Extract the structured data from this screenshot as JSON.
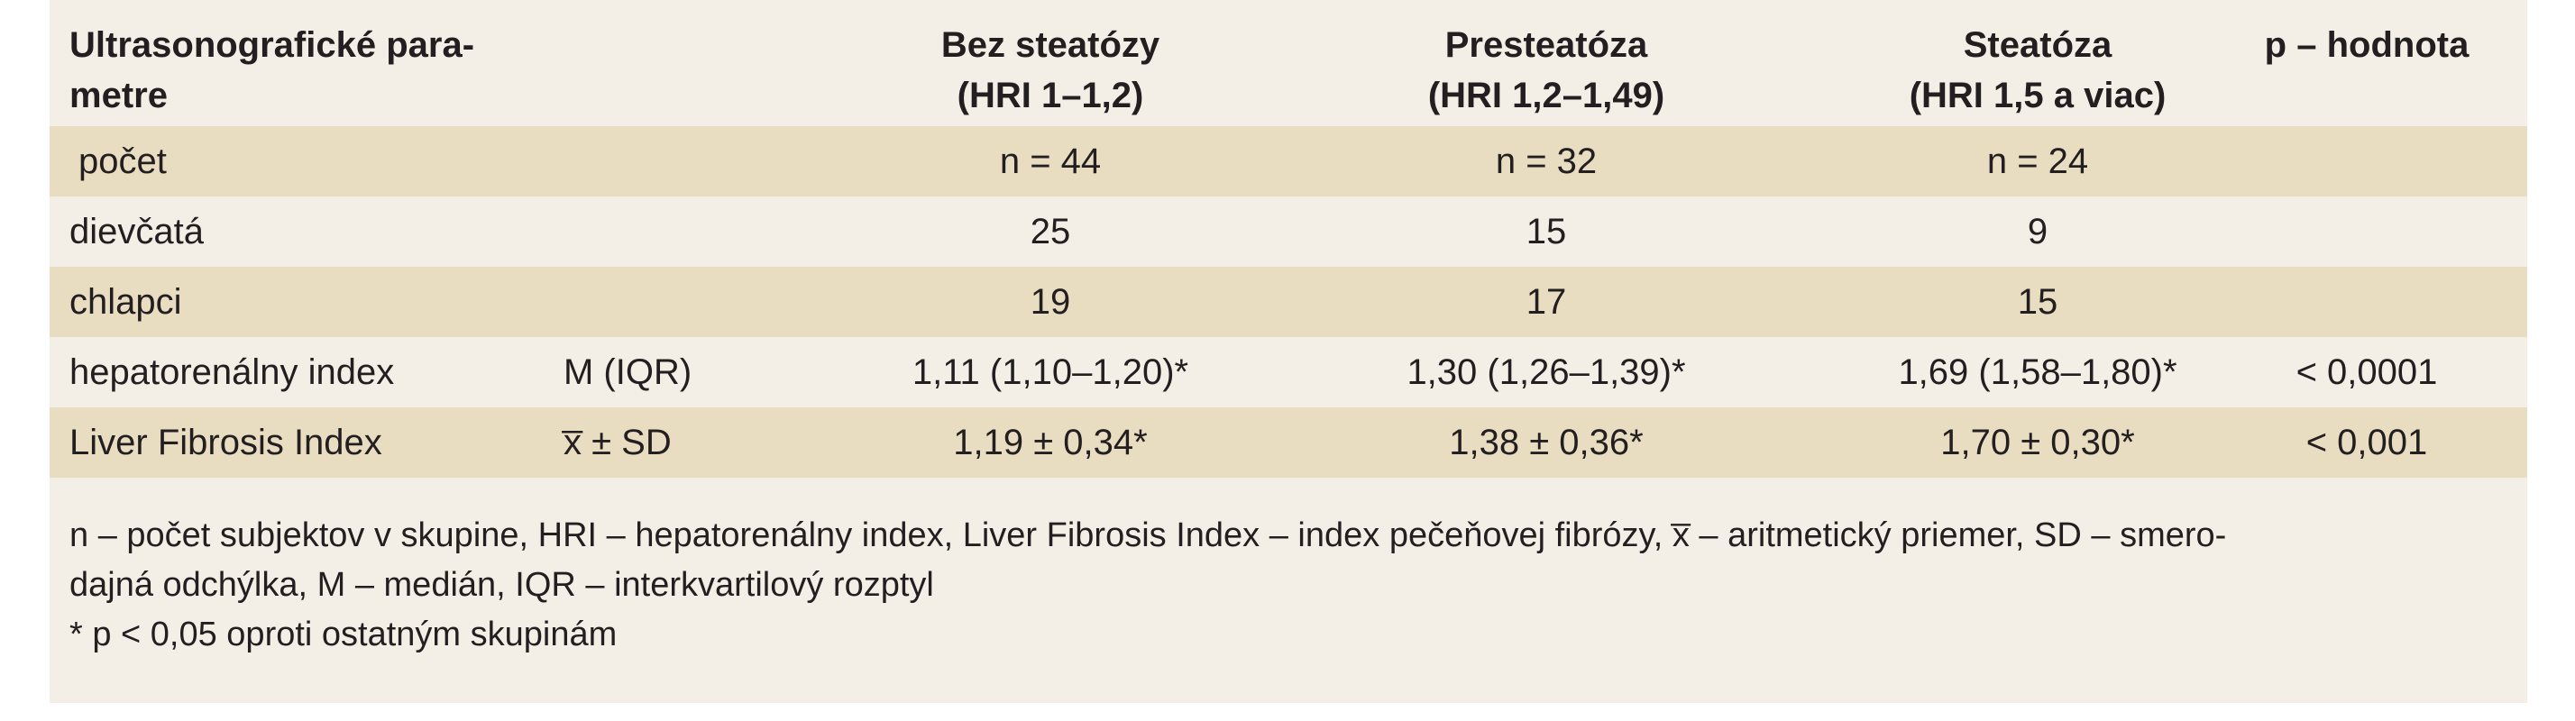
{
  "table": {
    "headers": {
      "param_line1": "Ultrasonografické para-",
      "param_line2": "metre",
      "col1_line1": "Bez steatózy",
      "col1_line2": "(HRI 1–1,2)",
      "col2_line1": "Presteatóza",
      "col2_line2": "(HRI 1,2–1,49)",
      "col3_line1": "Steatóza",
      "col3_line2": "(HRI 1,5 a viac)",
      "p_value": "p – hodnota"
    },
    "rows": [
      {
        "label": "počet",
        "stat": "",
        "v1": "n = 44",
        "v2": "n = 32",
        "v3": "n = 24",
        "p": ""
      },
      {
        "label": "dievčatá",
        "stat": "",
        "v1": "25",
        "v2": "15",
        "v3": "9",
        "p": ""
      },
      {
        "label": "chlapci",
        "stat": "",
        "v1": "19",
        "v2": "17",
        "v3": "15",
        "p": ""
      },
      {
        "label": "hepatorenálny index",
        "stat": "M (IQR)",
        "v1": "1,11 (1,10–1,20)*",
        "v2": "1,30 (1,26–1,39)*",
        "v3": "1,69 (1,58–1,80)*",
        "p": "< 0,0001"
      },
      {
        "label": "Liver Fibrosis Index",
        "stat": "x̅ ± SD",
        "v1": "1,19 ± 0,34*",
        "v2": "1,38 ± 0,36*",
        "v3": "1,70 ± 0,30*",
        "p": "< 0,001"
      }
    ]
  },
  "notes": {
    "line1": "n – počet subjektov v skupine, HRI – hepatorenálny index, Liver Fibrosis Index – index pečeňovej fibrózy, x̅ – aritmetický priemer, SD – smero-",
    "line2": "dajná odchýlka, M – medián, IQR – interkvartilový rozptyl",
    "line3": "* p < 0,05 oproti ostatným skupinám"
  },
  "colors": {
    "panel_background": "#f3efe6",
    "shaded_row": "#e8dcc1",
    "text": "#231f20"
  }
}
